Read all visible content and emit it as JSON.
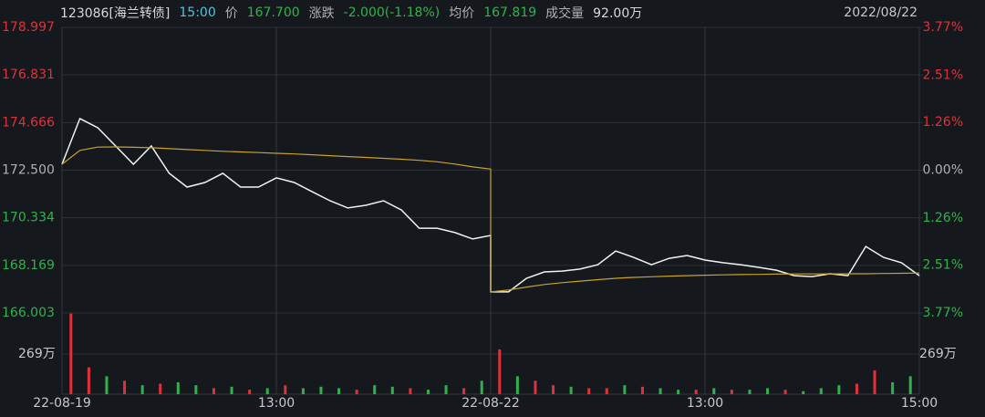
{
  "chart_data": {
    "type": "line",
    "header": [
      {
        "text": "123086[海兰转债]",
        "color": "#d8d8d8"
      },
      {
        "text": "15:00",
        "color": "#4fc3e6"
      },
      {
        "text": "价",
        "color": "#b0b0b0"
      },
      {
        "text": "167.700",
        "color": "#2fb24a"
      },
      {
        "text": "涨跌",
        "color": "#b0b0b0"
      },
      {
        "text": "-2.000(-1.18%)",
        "color": "#2fb24a"
      },
      {
        "text": "均价",
        "color": "#b0b0b0"
      },
      {
        "text": "167.819",
        "color": "#2fb24a"
      },
      {
        "text": "成交量",
        "color": "#b0b0b0"
      },
      {
        "text": "92.00万",
        "color": "#d8d8d8"
      }
    ],
    "date": "2022/08/22",
    "up_color": "#e0303a",
    "down_color": "#2fb24a",
    "flat_color": "#b0b0b0",
    "xlim": [
      0,
      48
    ],
    "xticks": [
      {
        "value": 0,
        "label": "22-08-19"
      },
      {
        "value": 12,
        "label": "13:00"
      },
      {
        "value": 24,
        "label": "22-08-22"
      },
      {
        "value": 36,
        "label": "13:00"
      },
      {
        "value": 48,
        "label": "15:00"
      }
    ],
    "ylim": [
      166.003,
      178.997
    ],
    "yticks": [
      178.997,
      176.831,
      174.666,
      {
        "value": 172.5,
        "label": "172.500"
      },
      170.334,
      168.169,
      166.003
    ],
    "y2lim": [
      -3.77,
      3.77
    ],
    "y2ticks": [
      {
        "value": 3.77,
        "label": "3.77%"
      },
      {
        "value": 2.51,
        "label": "2.51%"
      },
      {
        "value": 1.26,
        "label": "1.26%"
      },
      {
        "value": 0,
        "label": "0.00%"
      },
      {
        "value": -1.26,
        "label": "1.26%"
      },
      {
        "value": -2.51,
        "label": "2.51%"
      },
      {
        "value": -3.77,
        "label": "3.77%"
      }
    ],
    "x": [
      0,
      1,
      2,
      3,
      4,
      5,
      6,
      7,
      8,
      9,
      10,
      11,
      12,
      13,
      14,
      15,
      16,
      17,
      18,
      19,
      20,
      21,
      22,
      23,
      24,
      24,
      25,
      26,
      27,
      28,
      29,
      30,
      31,
      32,
      33,
      34,
      35,
      36,
      37,
      38,
      39,
      40,
      41,
      42,
      43,
      44,
      45,
      46,
      47,
      48
    ],
    "series": [
      {
        "color": "#f2f2f2",
        "values": [
          172.77,
          174.85,
          174.43,
          173.6,
          172.77,
          173.6,
          172.36,
          171.73,
          171.94,
          172.36,
          171.73,
          171.73,
          172.15,
          171.94,
          171.52,
          171.11,
          170.78,
          170.9,
          171.11,
          170.69,
          169.86,
          169.86,
          169.66,
          169.37,
          169.53,
          166.96,
          166.96,
          167.58,
          167.87,
          167.91,
          168.0,
          168.2,
          168.82,
          168.53,
          168.2,
          168.49,
          168.62,
          168.41,
          168.29,
          168.2,
          168.08,
          167.95,
          167.7,
          167.66,
          167.79,
          167.7,
          169.03,
          168.53,
          168.29,
          167.7
        ]
      },
      {
        "color": "#c9a227",
        "values": [
          172.77,
          173.4,
          173.55,
          173.56,
          173.54,
          173.52,
          173.48,
          173.44,
          173.4,
          173.36,
          173.33,
          173.3,
          173.27,
          173.24,
          173.2,
          173.16,
          173.12,
          173.08,
          173.04,
          173.0,
          172.95,
          172.88,
          172.78,
          172.65,
          172.55,
          166.96,
          167.05,
          167.18,
          167.3,
          167.38,
          167.45,
          167.52,
          167.58,
          167.62,
          167.65,
          167.68,
          167.7,
          167.72,
          167.74,
          167.75,
          167.76,
          167.77,
          167.78,
          167.78,
          167.78,
          167.79,
          167.79,
          167.8,
          167.81,
          167.82
        ]
      }
    ],
    "volume": {
      "ylim": [
        0,
        544
      ],
      "yticks": [
        {
          "value": 269,
          "label": "269万"
        }
      ],
      "values": [
        540,
        180,
        120,
        90,
        60,
        70,
        80,
        60,
        40,
        50,
        30,
        40,
        60,
        40,
        50,
        40,
        30,
        60,
        50,
        40,
        30,
        60,
        40,
        90,
        300,
        120,
        90,
        60,
        50,
        40,
        40,
        60,
        50,
        40,
        30,
        30,
        40,
        30,
        30,
        40,
        30,
        20,
        40,
        60,
        70,
        160,
        80,
        120
      ],
      "colors": [
        "#e0303a",
        "#e0303a",
        "#2fb24a",
        "#e0303a",
        "#2fb24a",
        "#e0303a",
        "#2fb24a",
        "#2fb24a",
        "#e0303a",
        "#2fb24a",
        "#e0303a",
        "#2fb24a",
        "#e0303a",
        "#2fb24a",
        "#2fb24a",
        "#2fb24a",
        "#e0303a",
        "#2fb24a",
        "#2fb24a",
        "#e0303a",
        "#2fb24a",
        "#2fb24a",
        "#e0303a",
        "#2fb24a",
        "#e0303a",
        "#2fb24a",
        "#e0303a",
        "#e0303a",
        "#2fb24a",
        "#e0303a",
        "#e0303a",
        "#2fb24a",
        "#e0303a",
        "#2fb24a",
        "#2fb24a",
        "#e0303a",
        "#2fb24a",
        "#e0303a",
        "#2fb24a",
        "#2fb24a",
        "#e0303a",
        "#2fb24a",
        "#2fb24a",
        "#2fb24a",
        "#e0303a",
        "#e0303a",
        "#2fb24a",
        "#2fb24a"
      ]
    }
  }
}
